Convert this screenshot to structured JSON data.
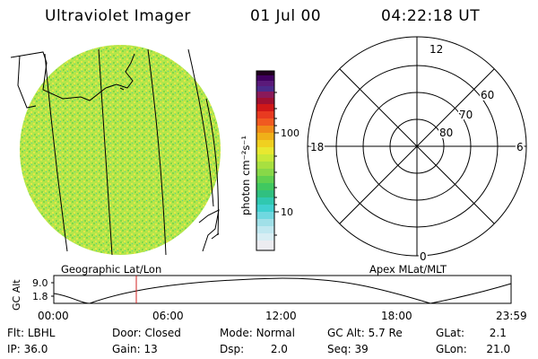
{
  "header": {
    "instrument": "Ultraviolet Imager",
    "date": "01 Jul 00",
    "time": "04:22:18 UT"
  },
  "colorbar": {
    "unit_label": "photon cm⁻²s⁻¹",
    "tick_100": "100",
    "tick_10": "10"
  },
  "polar": {
    "mlt_12": "12",
    "mlt_18": "18",
    "mlt_6": "6",
    "mlt_0": "0",
    "lat_60": "60",
    "lat_70": "70",
    "lat_80": "80"
  },
  "image_labels": {
    "left": "Geographic Lat/Lon",
    "right": "Apex MLat/MLT"
  },
  "altitude_plot": {
    "ylabel": "GC Alt",
    "ytick_high": "9.0",
    "ytick_low": "1.8",
    "xticks": [
      "00:00",
      "06:00",
      "12:00",
      "18:00",
      "23:59"
    ]
  },
  "status": {
    "flt_label": "Flt:",
    "flt_value": "LBHL",
    "door_label": "Door:",
    "door_value": "Closed",
    "mode_label": "Mode:",
    "mode_value": "Normal",
    "gcalt_label": "GC Alt:",
    "gcalt_value": "5.7 Re",
    "glat_label": "GLat:",
    "glat_value": "2.1",
    "ip_label": "IP:",
    "ip_value": "36.0",
    "gain_label": "Gain:",
    "gain_value": "13",
    "dsp_label": "Dsp:",
    "dsp_value": "2.0",
    "seq_label": "Seq:",
    "seq_value": "39",
    "glon_label": "GLon:",
    "glon_value": "21.0"
  },
  "colors": {
    "disk_base": "#b4e64a",
    "disk_green": "#7fd94a",
    "disk_yellow": "#e6e64a",
    "marker": "#d02020"
  }
}
